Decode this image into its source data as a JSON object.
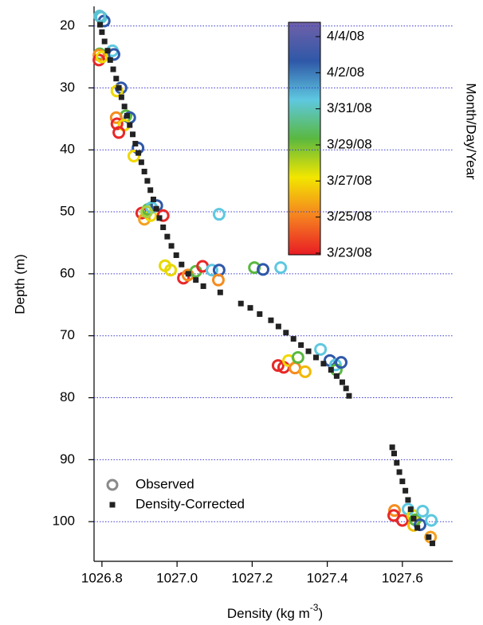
{
  "chart_data": {
    "type": "scatter",
    "xlabel": "Density (kg m",
    "xlabel_sup": "-3",
    "xlabel_end": ")",
    "ylabel": "Depth (m)",
    "xlim": [
      1026.779,
      1027.734
    ],
    "ylim": [
      106.4,
      17.1
    ],
    "xticks": [
      1026.8,
      {
        "value": 1027,
        "label": "1027.0"
      },
      1027.2,
      1027.4,
      1027.6
    ],
    "yticks": [
      20,
      30,
      40,
      50,
      60,
      70,
      80,
      90,
      100
    ],
    "grid": true,
    "grid_color": "#3a3ad0",
    "legend": "lower left",
    "series": [
      {
        "name": "Observed",
        "marker": "circle",
        "color": "#8a8a8a",
        "x": [
          1026.798,
          1026.806,
          1026.794,
          1026.794,
          1026.792,
          1026.792,
          1026.828,
          1026.832,
          1026.8,
          1026.851,
          1026.84,
          1026.864,
          1026.874,
          1026.838,
          1026.84,
          1026.859,
          1026.845,
          1026.896,
          1026.885,
          1026.906,
          1026.913,
          1026.93,
          1026.923,
          1026.946,
          1026.932,
          1026.963,
          1026.919,
          1027.112,
          1026.968,
          1026.983,
          1027.017,
          1027.029,
          1027.05,
          1027.068,
          1027.093,
          1027.112,
          1027.11,
          1027.206,
          1027.229,
          1027.276,
          1027.269,
          1027.284,
          1027.297,
          1027.314,
          1027.322,
          1027.341,
          1027.382,
          1027.407,
          1027.422,
          1027.424,
          1027.437,
          1027.579,
          1027.577,
          1027.6,
          1027.615,
          1027.628,
          1027.63,
          1027.634,
          1027.647,
          1027.654,
          1027.677,
          1027.675
        ],
        "values": [
          18.6,
          19.2,
          18.4,
          24.5,
          24.7,
          25.5,
          24.0,
          24.6,
          25.0,
          30.0,
          30.5,
          34.5,
          34.8,
          34.8,
          35.8,
          36.0,
          37.2,
          39.7,
          41.0,
          50.2,
          51.2,
          50.6,
          49.6,
          49.0,
          49.3,
          50.6,
          50.0,
          50.4,
          58.7,
          59.4,
          60.7,
          60.2,
          59.6,
          58.8,
          59.4,
          59.4,
          61.0,
          59.0,
          59.3,
          59.0,
          74.8,
          75.1,
          74.0,
          75.2,
          73.5,
          75.8,
          72.2,
          74.0,
          74.7,
          75.5,
          74.3,
          98.2,
          99.0,
          99.8,
          98.0,
          99.0,
          100.6,
          99.7,
          100.5,
          98.3,
          99.8,
          102.5
        ],
        "colors": [
          "#50c8d8",
          "#2f58a8",
          "#60c0d0",
          "#5ab840",
          "#f58c1e",
          "#e82828",
          "#5ec8e0",
          "#2f58a8",
          "#f0d800",
          "#2f58a8",
          "#f0d800",
          "#5ab840",
          "#2f58a8",
          "#f58c1e",
          "#e82828",
          "#f0d800",
          "#e82828",
          "#2f58a8",
          "#f0d800",
          "#e82828",
          "#f5a020",
          "#f0d800",
          "#5ab840",
          "#2f58a8",
          "#5ec8e0",
          "#e82828",
          "#a8d040",
          "#5ec8e0",
          "#e8d800",
          "#e8d800",
          "#e82828",
          "#f58c1e",
          "#5ab840",
          "#e82828",
          "#5ec8e0",
          "#2f58a8",
          "#f58c1e",
          "#5ab840",
          "#2f58a8",
          "#5ec8e0",
          "#e82828",
          "#e82828",
          "#f0d800",
          "#f58c1e",
          "#5ab840",
          "#f0b800",
          "#5ec8e0",
          "#2f58a8",
          "#5ec8e0",
          "#5ab840",
          "#2f58a8",
          "#f58c1e",
          "#e82828",
          "#e82828",
          "#5ec8e0",
          "#f0d800",
          "#f0c000",
          "#5ab840",
          "#2f58a8",
          "#5ec8e0",
          "#5ec8e0",
          "#f5a020"
        ]
      },
      {
        "name": "Density-Corrected",
        "marker": "square",
        "color": "#222222",
        "x": [
          1026.795,
          1026.8,
          1026.807,
          1026.815,
          1026.822,
          1026.83,
          1026.838,
          1026.845,
          1026.852,
          1026.86,
          1026.867,
          1026.874,
          1026.882,
          1026.889,
          1026.897,
          1026.905,
          1026.913,
          1026.921,
          1026.929,
          1026.937,
          1026.945,
          1026.953,
          1026.963,
          1026.974,
          1026.985,
          1026.998,
          1027.012,
          1027.03,
          1027.05,
          1027.07,
          1027.115,
          1027.17,
          1027.195,
          1027.22,
          1027.25,
          1027.27,
          1027.29,
          1027.31,
          1027.33,
          1027.35,
          1027.37,
          1027.39,
          1027.41,
          1027.425,
          1027.44,
          1027.45,
          1027.458,
          1027.573,
          1027.578,
          1027.585,
          1027.592,
          1027.6,
          1027.608,
          1027.615,
          1027.622,
          1027.63,
          1027.64,
          1027.67,
          1027.68
        ],
        "values": [
          19.8,
          21,
          22.5,
          24,
          25.5,
          27,
          28.5,
          30,
          31.5,
          33,
          34.5,
          36,
          37.5,
          39,
          40.5,
          42,
          43.5,
          45,
          46.5,
          48,
          49.5,
          51,
          52.5,
          54,
          55.5,
          57,
          58.5,
          60,
          61,
          62,
          63,
          64.8,
          65.5,
          66.5,
          67.5,
          68.5,
          69.5,
          70.5,
          71.5,
          72.5,
          73.5,
          74.5,
          75.5,
          76.5,
          77.5,
          78.5,
          79.7,
          88,
          89,
          90.5,
          92,
          93.5,
          95,
          96.5,
          98,
          99.5,
          101,
          102.5,
          103.5
        ]
      }
    ],
    "colorbar": {
      "label": "Month/Day/Year",
      "colors": [
        "#e81c24",
        "#f58220",
        "#f2e600",
        "#5ab840",
        "#5ec8e0",
        "#2f58a8",
        "#7060a8"
      ],
      "ticks": [
        "3/23/08",
        "3/25/08",
        "3/27/08",
        "3/29/08",
        "3/31/08",
        "4/2/08",
        "4/4/08"
      ]
    }
  }
}
